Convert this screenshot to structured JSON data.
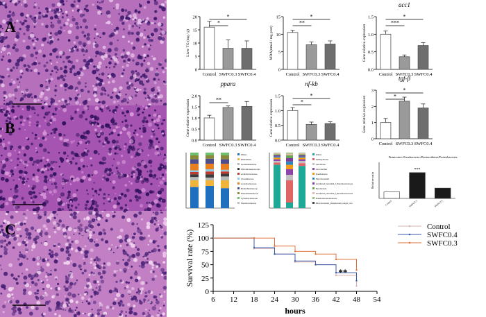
{
  "figure": {
    "panel_labels": [
      "A",
      "B",
      "C"
    ],
    "bar_axis": {
      "tick_labels": [
        "0",
        "5",
        "10",
        "15",
        "20"
      ],
      "tick_labels_ppara": [
        "0.0",
        "0.5",
        "1.0",
        "1.5",
        "2.0"
      ],
      "tick_labels_nfkb": [
        "0.0",
        "0.5",
        "1.0",
        "1.5"
      ],
      "tick_labels_tgfb": [
        "0",
        "1",
        "2",
        "3"
      ],
      "tick_labels_acc1": [
        "0.0",
        "0.5",
        "1.0",
        "1.5"
      ]
    }
  },
  "chart_data": [
    {
      "type": "bar",
      "title": "",
      "ylabel": "Liver TG (mg / g)",
      "categories": [
        "Control",
        "SWFC0.3",
        "SWFC0.4"
      ],
      "values": [
        16.0,
        8.0,
        8.0
      ],
      "errors": [
        2.2,
        3.2,
        2.8
      ],
      "ylim": [
        0,
        20
      ],
      "significance": [
        "*",
        "*"
      ]
    },
    {
      "type": "bar",
      "title": "",
      "ylabel": "MDA(nmol / mg prot)",
      "categories": [
        "Control",
        "SWFC0.3",
        "SWFC0.4"
      ],
      "values": [
        10.5,
        7.0,
        7.2
      ],
      "errors": [
        0.6,
        0.8,
        0.9
      ],
      "ylim": [
        0,
        15
      ],
      "significance": [
        "**",
        "*"
      ]
    },
    {
      "type": "bar",
      "title": "acc1",
      "ylabel": "Gene relative expression",
      "categories": [
        "Control",
        "SWFC0.3",
        "SWFC0.4"
      ],
      "values": [
        1.0,
        0.36,
        0.68
      ],
      "errors": [
        0.09,
        0.05,
        0.08
      ],
      "ylim": [
        0,
        1.5
      ],
      "significance": [
        "***",
        "*"
      ]
    },
    {
      "type": "bar",
      "title": "ppara",
      "ylabel": "Gene relative expression",
      "categories": [
        "Control",
        "SWFC0.3",
        "SWFC0.4"
      ],
      "values": [
        1.0,
        1.47,
        1.52
      ],
      "errors": [
        0.12,
        0.07,
        0.22
      ],
      "ylim": [
        0,
        2.0
      ],
      "significance": [
        "**"
      ]
    },
    {
      "type": "bar",
      "title": "nf-kb",
      "ylabel": "Gene relative expression",
      "categories": [
        "Control",
        "SWFC0.3",
        "SWFC0.4"
      ],
      "values": [
        1.0,
        0.53,
        0.56
      ],
      "errors": [
        0.1,
        0.08,
        0.06
      ],
      "ylim": [
        0,
        1.5
      ],
      "significance": [
        "*",
        "*"
      ]
    },
    {
      "type": "bar",
      "title": "tgf-β",
      "ylabel": "Gene relative expression",
      "categories": [
        "Control",
        "SWFC0.3",
        "SWFC0.4"
      ],
      "values": [
        1.0,
        2.32,
        1.9
      ],
      "errors": [
        0.25,
        0.25,
        0.25
      ],
      "ylim": [
        0,
        3
      ],
      "significance": [
        "*",
        "*"
      ]
    },
    {
      "type": "bar",
      "title": "Firmicutes+Fusobacteria+Bacteroidetes/Proteobacteria",
      "ylabel": "Relative ratio",
      "categories": [
        "Control",
        "SWFC0.3",
        "SWFC0.4"
      ],
      "values": [
        0.25,
        1.0,
        0.4
      ],
      "ylim": [
        0,
        1.4
      ],
      "significance": [
        "***"
      ]
    },
    {
      "type": "line",
      "title": "",
      "xlabel": "hours",
      "ylabel": "Survival rate (%)",
      "x": [
        6,
        18,
        24,
        30,
        36,
        42,
        48
      ],
      "xticks": [
        "6",
        "12",
        "18",
        "24",
        "30",
        "36",
        "42",
        "48",
        "54"
      ],
      "yticks": [
        "0",
        "25",
        "50",
        "75",
        "100",
        "125"
      ],
      "xlim": [
        6,
        54
      ],
      "ylim": [
        0,
        125
      ],
      "series": [
        {
          "name": "Control",
          "color": "#d8b4b4",
          "values": [
            100,
            80,
            70,
            55,
            50,
            30,
            10
          ]
        },
        {
          "name": "SWFC0.4",
          "color": "#3a5aa8",
          "values": [
            100,
            82,
            70,
            57,
            50,
            35,
            20
          ]
        },
        {
          "name": "SWFC0.3",
          "color": "#e0703a",
          "values": [
            100,
            100,
            85,
            75,
            70,
            60,
            40
          ]
        }
      ],
      "annotation": "**",
      "legend": "top-right"
    }
  ],
  "microbiome_legend_1": [
    "Others",
    "Rhizobiales",
    "Aeromonadaceae",
    "Micromonosporaceae",
    "Acidobacteriaceae",
    "Clostridiaceae",
    "Acetobacteraceae",
    "Bradyrhizobiaceae",
    "Pseudomonadaceae",
    "Cyanobacteriaceae",
    "Fusobacteriaceae"
  ],
  "microbiome_legend_2": [
    "Others",
    "Sphingomonas",
    "Aeromonas",
    "Lactobacillus",
    "Pseudomonas",
    "Mycobacterium",
    "uncultured_bacterium_f_Enterobacteriaceae",
    "Fusobacteria",
    "uncultured_bacterium_f_Rhodobacteriaceae",
    "Pseudoalteromonadaceae",
    "Photobacterium_phosphoreum_ranges_taxa"
  ]
}
